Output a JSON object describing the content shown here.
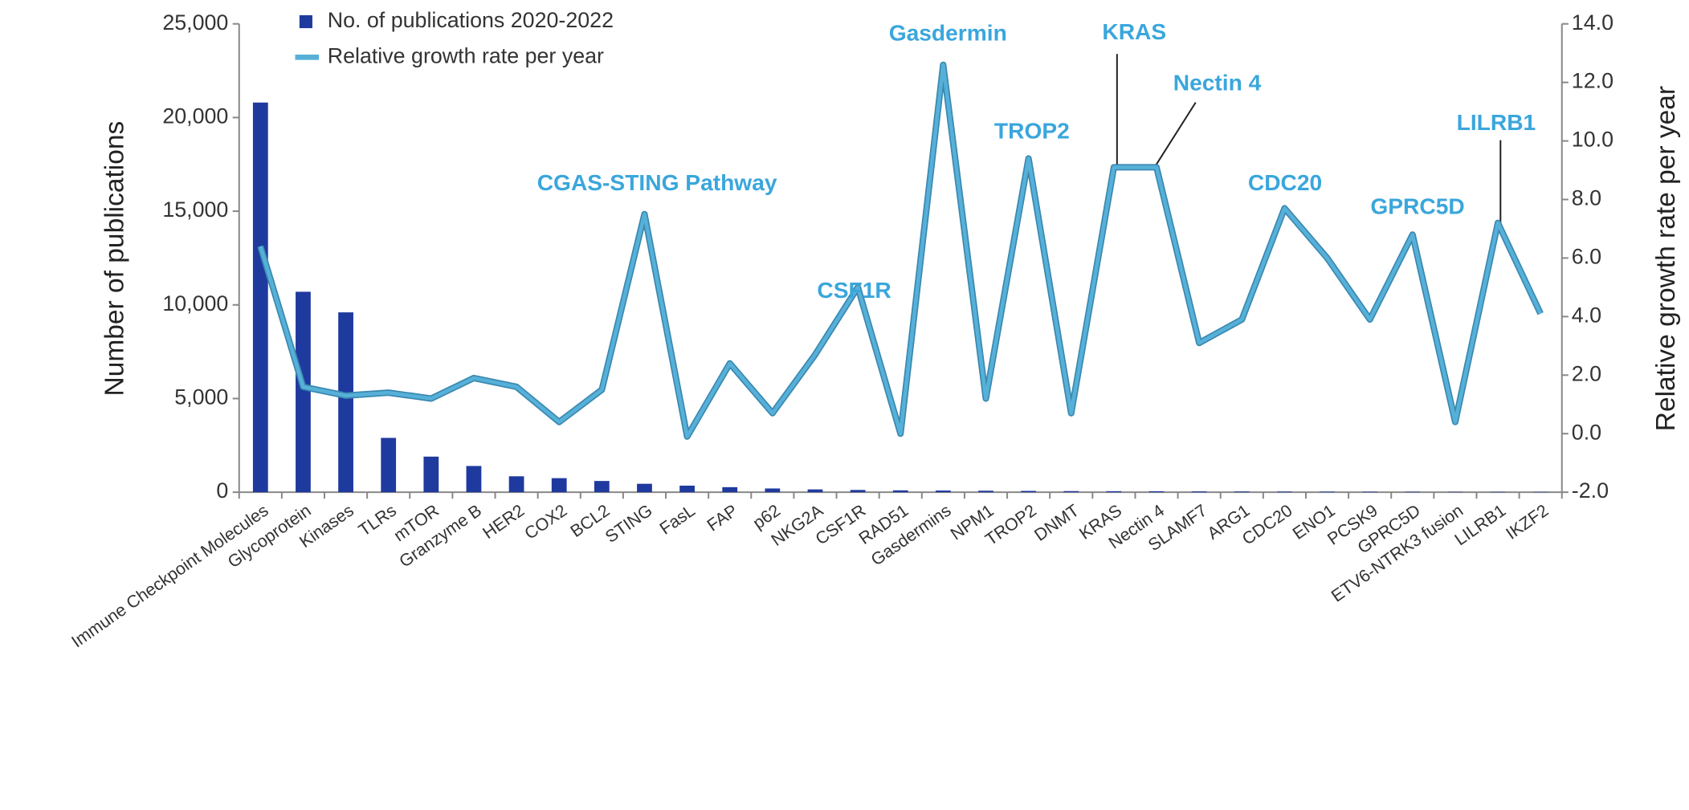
{
  "chart_data": {
    "type": "bar",
    "categories": [
      "Immune Checkpoint Molecules",
      "Glycoprotein",
      "Kinases",
      "TLRs",
      "mTOR",
      "Granzyme B",
      "HER2",
      "COX2",
      "BCL2",
      "STING",
      "FasL",
      "FAP",
      "p62",
      "NKG2A",
      "CSF1R",
      "RAD51",
      "Gasdermins",
      "NPM1",
      "TROP2",
      "DNMT",
      "KRAS",
      "Nectin 4",
      "SLAMF7",
      "ARG1",
      "CDC20",
      "ENO1",
      "PCSK9",
      "GPRC5D",
      "ETV6-NTRK3 fusion",
      "LILRB1",
      "IKZF2"
    ],
    "series": [
      {
        "name": "No. of publications 2020-2022",
        "type": "bar",
        "color": "#1f3a9e",
        "values": [
          20800,
          10700,
          9600,
          2900,
          1900,
          1400,
          850,
          750,
          600,
          450,
          350,
          270,
          200,
          150,
          120,
          100,
          90,
          80,
          70,
          60,
          55,
          50,
          45,
          40,
          35,
          30,
          28,
          25,
          20,
          18,
          15
        ]
      },
      {
        "name": "Relative growth rate per year",
        "type": "line",
        "axis": "y2",
        "color": "#56b0d8",
        "values": [
          6.4,
          1.6,
          1.3,
          1.4,
          1.2,
          1.9,
          1.6,
          0.4,
          1.5,
          7.5,
          -0.1,
          2.4,
          0.7,
          2.7,
          5.0,
          0.0,
          12.6,
          1.2,
          9.4,
          0.7,
          9.1,
          9.1,
          3.1,
          3.9,
          7.7,
          6.0,
          3.9,
          6.8,
          0.4,
          7.2,
          4.1
        ]
      }
    ],
    "ylabel": "Number of publications",
    "y2label": "Relative growth rate per year",
    "ylim": [
      0,
      25000
    ],
    "yticks": [
      0,
      {
        "value": 5000,
        "label": "5,000"
      },
      {
        "value": 10000,
        "label": "10,000"
      },
      {
        "value": 15000,
        "label": "15,000"
      },
      {
        "value": 20000,
        "label": "20,000"
      },
      {
        "value": 25000,
        "label": "25,000"
      }
    ],
    "y2lim": [
      -2,
      14
    ],
    "y2ticks": [
      {
        "value": -2,
        "label": "-2.0"
      },
      {
        "value": 0,
        "label": "0.0"
      },
      {
        "value": 2,
        "label": "2.0"
      },
      {
        "value": 4,
        "label": "4.0"
      },
      {
        "value": 6,
        "label": "6.0"
      },
      {
        "value": 8,
        "label": "8.0"
      },
      {
        "value": 10,
        "label": "10.0"
      },
      {
        "value": 12,
        "label": "12.0"
      },
      {
        "value": 14,
        "label": "14.0"
      }
    ],
    "annotations": [
      "CGAS-STING Pathway",
      "CSF1R",
      "Gasdermin",
      "TROP2",
      "KRAS",
      "Nectin 4",
      "CDC20",
      "GPRC5D",
      "LILRB1"
    ],
    "legend": "top-left",
    "grid": false
  }
}
